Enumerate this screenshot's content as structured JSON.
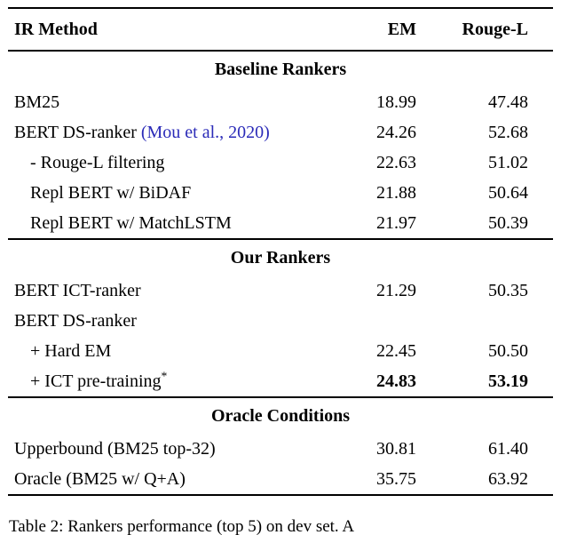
{
  "colors": {
    "citation_blue": "#2b2bb8"
  },
  "header": {
    "method": "IR Method",
    "em": "EM",
    "rouge": "Rouge-L"
  },
  "sections": [
    {
      "title": "Baseline Rankers",
      "rows": [
        {
          "method": "BM25",
          "em": "18.99",
          "rouge": "47.48"
        },
        {
          "method_prefix": "BERT DS-ranker ",
          "citation": "(Mou et al., 2020)",
          "em": "24.26",
          "rouge": "52.68"
        },
        {
          "method": "- Rouge-L filtering",
          "em": "22.63",
          "rouge": "51.02"
        },
        {
          "method": "Repl BERT w/ BiDAF",
          "em": "21.88",
          "rouge": "50.64"
        },
        {
          "method": "Repl BERT w/ MatchLSTM",
          "em": "21.97",
          "rouge": "50.39"
        }
      ]
    },
    {
      "title": "Our Rankers",
      "rows": [
        {
          "method": "BERT ICT-ranker",
          "em": "21.29",
          "rouge": "50.35"
        },
        {
          "method": "BERT DS-ranker",
          "em": "",
          "rouge": ""
        },
        {
          "method": "+ Hard EM",
          "em": "22.45",
          "rouge": "50.50"
        },
        {
          "method": "+ ICT pre-training",
          "star": "*",
          "em": "24.83",
          "rouge": "53.19"
        }
      ]
    },
    {
      "title": "Oracle Conditions",
      "rows": [
        {
          "method": "Upperbound (BM25 top-32)",
          "em": "30.81",
          "rouge": "61.40"
        },
        {
          "method": "Oracle (BM25 w/ Q+A)",
          "em": "35.75",
          "rouge": "63.92"
        }
      ]
    }
  ],
  "caption": "Table 2: Rankers performance (top 5) on dev set. A"
}
